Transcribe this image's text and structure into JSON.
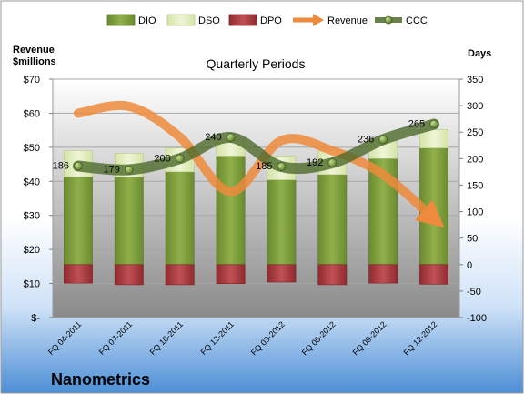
{
  "chart_data": {
    "type": "bar",
    "title": "Quarterly Periods",
    "company": "Nanometrics",
    "left_axis": {
      "title_line1": "Revenue",
      "title_line2": "$millions",
      "ylim": [
        0,
        70
      ],
      "ticks": [
        0,
        10,
        20,
        30,
        40,
        50,
        60,
        70
      ],
      "tick_labels": [
        "$-",
        "$10",
        "$20",
        "$30",
        "$40",
        "$50",
        "$60",
        "$70"
      ]
    },
    "right_axis": {
      "title": "Days",
      "ylim": [
        -100,
        350
      ],
      "ticks": [
        -100,
        -50,
        0,
        50,
        100,
        150,
        200,
        250,
        300,
        350
      ],
      "tick_labels": [
        "-100",
        "-50",
        "0",
        "50",
        "100",
        "150",
        "200",
        "250",
        "300",
        "350"
      ]
    },
    "categories": [
      "FQ 04-2011",
      "FQ 07-2011",
      "FQ 10-2011",
      "FQ 12-2011",
      "FQ 03-2012",
      "FQ 06-2012",
      "FQ 09-2012",
      "FQ 12-2012"
    ],
    "series": [
      {
        "name": "DIO",
        "type": "stacked-bar",
        "axis": "days",
        "values": [
          165,
          165,
          175,
          205,
          160,
          170,
          200,
          220
        ]
      },
      {
        "name": "DSO",
        "type": "stacked-bar",
        "axis": "days",
        "values": [
          50,
          45,
          45,
          30,
          45,
          45,
          35,
          35
        ]
      },
      {
        "name": "DPO",
        "type": "bar-below-zero",
        "axis": "days",
        "values": [
          35,
          38,
          38,
          36,
          33,
          38,
          35,
          37
        ]
      },
      {
        "name": "Revenue",
        "type": "line",
        "axis": "revenue",
        "values": [
          60,
          62,
          53,
          37,
          52,
          49,
          42,
          29
        ]
      },
      {
        "name": "CCC",
        "type": "line",
        "axis": "days",
        "values": [
          186,
          179,
          200,
          240,
          185,
          192,
          236,
          265
        ]
      }
    ],
    "legend_position": "top",
    "grid": true
  },
  "colors": {
    "dio": "#7a9c3a",
    "dso": "#e4efc4",
    "dpo": "#a8393d",
    "revenue": "#ee8a3c",
    "ccc": "#4d6a2c",
    "plot_top": "#ffffff",
    "plot_bottom": "#8a8a8a",
    "bg_top": "#ffffff",
    "bg_bottom": "#4d8fd6"
  }
}
